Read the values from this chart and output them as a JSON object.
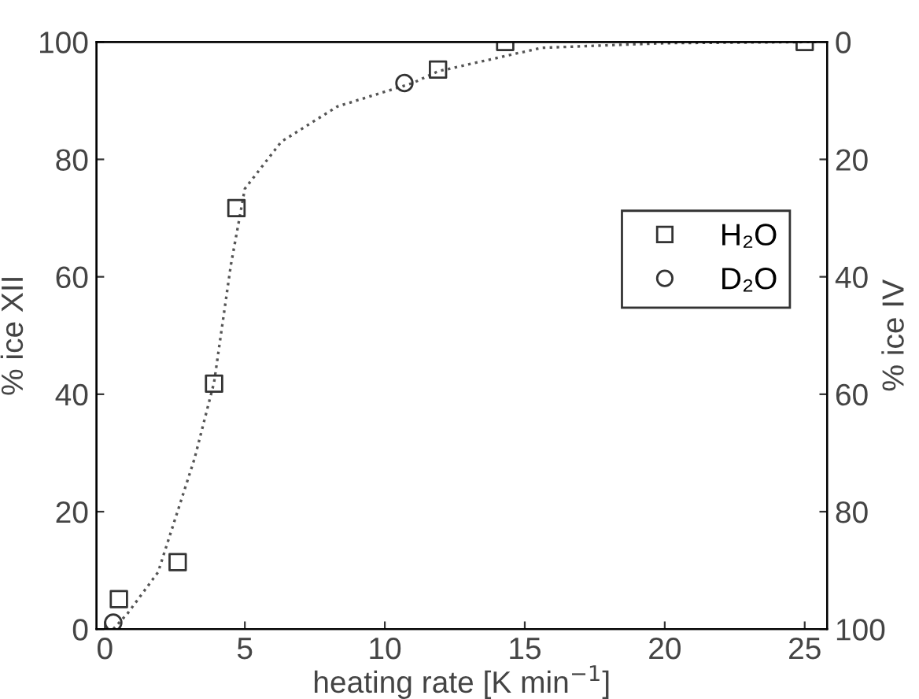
{
  "chart_data": {
    "type": "scatter",
    "xlabel": "heating rate [K min$^{−1}$]",
    "ylabel": "% ice XII",
    "y2label": "% ice IV",
    "series": [
      {
        "name": "H₂O",
        "color": "#333333",
        "marker": "square",
        "x": [
          0.5,
          2.6,
          3.9,
          4.7,
          11.9,
          14.3,
          25.0
        ],
        "values": [
          5.1,
          11.4,
          41.8,
          71.7,
          95.3,
          100,
          100
        ]
      },
      {
        "name": "D₂O",
        "color": "#333333",
        "marker": "circle",
        "x": [
          0.3,
          10.7
        ],
        "values": [
          1.1,
          93
        ]
      },
      {
        "type": "line",
        "color": "#555555",
        "line_style": "dotted",
        "marker": "none",
        "x": [
          0.3,
          0.8,
          1.9,
          3.2,
          3.9,
          4.5,
          5.0,
          6.3,
          8.3,
          11.0,
          11.9,
          15.6,
          20,
          25.5
        ],
        "values": [
          0,
          2.6,
          9.7,
          29,
          42,
          62,
          75,
          83,
          89,
          93,
          95,
          99,
          99.8,
          100
        ]
      }
    ],
    "xlim": [
      -0.3,
      25.8
    ],
    "ylim": [
      0,
      100
    ],
    "y2lim": [
      100,
      0
    ],
    "xticks": [
      0,
      5,
      10,
      15,
      20,
      25
    ],
    "yticks": [
      0,
      20,
      40,
      60,
      80,
      100
    ],
    "y2ticks": [
      0,
      20,
      40,
      60,
      80,
      100
    ],
    "grid": false,
    "legend": "right"
  }
}
